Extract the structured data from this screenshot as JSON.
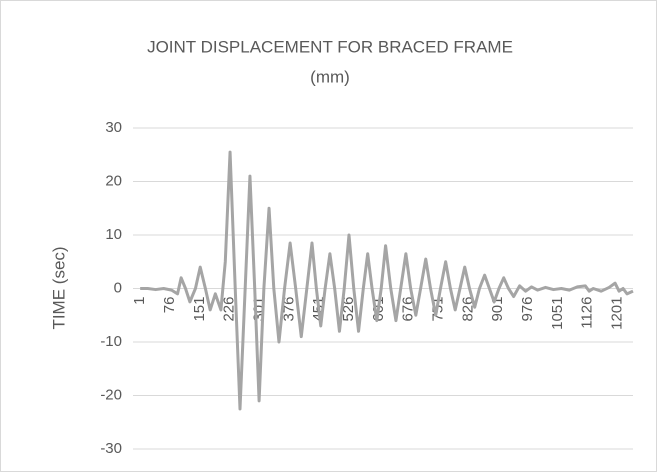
{
  "chart_data": {
    "type": "line",
    "title_lines": [
      "JOINT DISPLACEMENT FOR BRACED FRAME",
      "(mm)"
    ],
    "y_label": "TIME (sec)",
    "xlim": [
      -17,
      1240
    ],
    "xticks": [
      1,
      76,
      151,
      226,
      301,
      376,
      451,
      526,
      601,
      676,
      751,
      826,
      901,
      976,
      1051,
      1126,
      1201
    ],
    "ylim": [
      -30,
      30
    ],
    "yticks": [
      -30,
      -20,
      -10,
      0,
      10,
      20,
      30
    ],
    "grid": true,
    "series": [
      {
        "color": "#a5a5a5",
        "x": [
          1,
          20,
          40,
          60,
          80,
          95,
          104,
          115,
          126,
          140,
          152,
          165,
          177,
          190,
          204,
          215,
          227,
          240,
          252,
          265,
          277,
          289,
          300,
          312,
          325,
          337,
          350,
          364,
          378,
          392,
          406,
          420,
          433,
          444,
          455,
          466,
          478,
          490,
          502,
          514,
          526,
          538,
          550,
          562,
          573,
          584,
          596,
          607,
          618,
          631,
          644,
          656,
          669,
          681,
          694,
          706,
          719,
          731,
          744,
          756,
          769,
          781,
          793,
          805,
          817,
          829,
          842,
          854,
          867,
          879,
          891,
          903,
          915,
          927,
          940,
          955,
          970,
          985,
          1000,
          1020,
          1040,
          1060,
          1080,
          1100,
          1120,
          1130,
          1140,
          1160,
          1180,
          1195,
          1205,
          1215,
          1225,
          1240
        ],
        "values": [
          0,
          0,
          -0.2,
          0,
          -0.3,
          -1,
          2,
          0,
          -2.5,
          0,
          4,
          0,
          -4,
          -1,
          -4,
          5,
          25.5,
          0,
          -22.5,
          0,
          21,
          0,
          -21,
          0,
          15,
          0,
          -10,
          0,
          8.5,
          0,
          -9,
          0,
          8.5,
          0,
          -7,
          0,
          6.5,
          0,
          -8,
          0,
          10,
          0,
          -8,
          0,
          6.5,
          0,
          -6,
          0,
          8,
          0,
          -6,
          0,
          6.5,
          0,
          -5,
          0,
          5.5,
          0,
          -5,
          0,
          5,
          0,
          -4,
          0,
          4,
          0,
          -3.5,
          0,
          2.5,
          0,
          -2.5,
          0,
          2,
          0,
          -1.5,
          0.5,
          -0.5,
          0.3,
          -0.3,
          0.2,
          -0.2,
          0,
          -0.3,
          0.3,
          0.5,
          -0.5,
          0,
          -0.5,
          0.2,
          1,
          -0.5,
          0,
          -1,
          -0.5
        ]
      }
    ]
  }
}
